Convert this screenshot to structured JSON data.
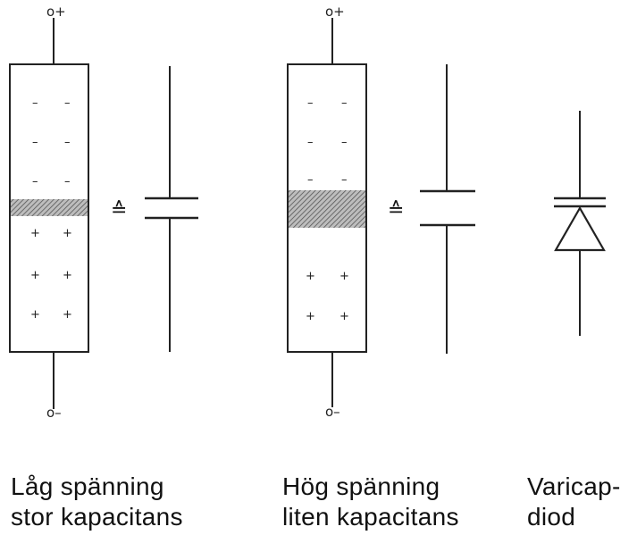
{
  "panels": [
    {
      "caption_line1": "Låg spänning",
      "caption_line2": "stor kapacitans",
      "top_terminal": "o+",
      "bottom_terminal": "o–",
      "equivalence_symbol": "≙",
      "minus_sign": "–",
      "plus_sign": "+"
    },
    {
      "caption_line1": "Hög spänning",
      "caption_line2": "liten kapacitans",
      "top_terminal": "o+",
      "bottom_terminal": "o–",
      "equivalence_symbol": "≙",
      "minus_sign": "–",
      "plus_sign": "+"
    },
    {
      "caption_line1": "Varicap-",
      "caption_line2": "diod"
    }
  ]
}
